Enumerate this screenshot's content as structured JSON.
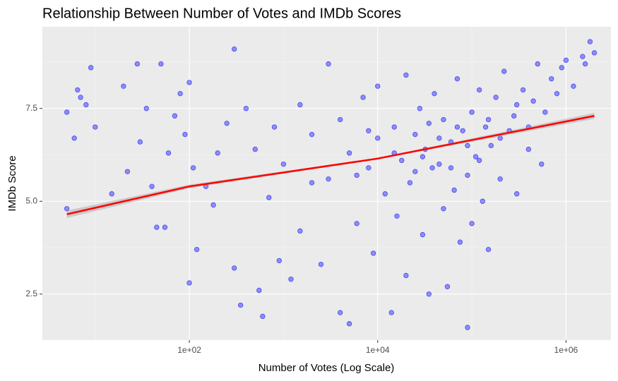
{
  "chart_data": {
    "type": "scatter",
    "title": "Relationship Between Number of Votes and IMDb Scores",
    "x_label": "Number of Votes (Log Scale)",
    "y_label": "IMDb Score",
    "xscale": "log",
    "grid": true,
    "color": "#0000ff",
    "xlim": [
      2.75,
      3000000
    ],
    "ylim": [
      1.26,
      9.7
    ],
    "xticks": [
      {
        "value": 100,
        "label": "1e+02"
      },
      {
        "value": 10000,
        "label": "1e+04"
      },
      {
        "value": 1000000,
        "label": "1e+06"
      }
    ],
    "yticks": [
      2.5,
      5.0,
      7.5
    ],
    "x": [
      5,
      6,
      6.5,
      7,
      8,
      9,
      10,
      5,
      15,
      20,
      22,
      28,
      30,
      35,
      40,
      45,
      50,
      55,
      60,
      70,
      80,
      90,
      100,
      110,
      120,
      100,
      150,
      180,
      200,
      250,
      300,
      300,
      350,
      400,
      500,
      550,
      600,
      700,
      800,
      900,
      1000,
      1200,
      1500,
      1500,
      2000,
      2500,
      3000,
      3000,
      4000,
      4000,
      5000,
      5000,
      6000,
      7000,
      8000,
      9000,
      10000,
      10000,
      12000,
      14000,
      15000,
      16000,
      18000,
      20000,
      20000,
      22000,
      25000,
      28000,
      30000,
      32000,
      35000,
      38000,
      40000,
      45000,
      50000,
      50000,
      55000,
      60000,
      65000,
      70000,
      75000,
      80000,
      90000,
      90000,
      100000,
      100000,
      110000,
      120000,
      130000,
      140000,
      150000,
      160000,
      180000,
      200000,
      220000,
      250000,
      280000,
      300000,
      350000,
      400000,
      450000,
      500000,
      550000,
      600000,
      700000,
      800000,
      900000,
      1000000,
      1200000,
      1500000,
      1800000,
      2000000,
      1600000,
      15000,
      25000,
      35000,
      45000,
      60000,
      70000,
      120000,
      200000,
      300000,
      30000,
      8000,
      6000,
      2000,
      400000,
      150000,
      90000
    ],
    "values": [
      7.4,
      6.7,
      8.0,
      7.8,
      7.6,
      8.6,
      7.0,
      4.8,
      5.2,
      8.1,
      5.8,
      8.7,
      6.6,
      7.5,
      5.4,
      4.3,
      8.7,
      4.3,
      6.3,
      7.3,
      7.9,
      6.8,
      8.2,
      5.9,
      3.7,
      2.8,
      5.4,
      4.9,
      6.3,
      7.1,
      9.1,
      3.2,
      2.2,
      7.5,
      6.4,
      2.6,
      1.9,
      5.1,
      7.0,
      3.4,
      6.0,
      2.9,
      7.6,
      4.2,
      6.8,
      3.3,
      8.7,
      5.6,
      2.0,
      7.2,
      1.7,
      6.3,
      4.4,
      7.8,
      5.9,
      3.6,
      6.7,
      8.1,
      5.2,
      2.0,
      7.0,
      4.6,
      6.1,
      8.4,
      3.0,
      5.5,
      6.8,
      7.5,
      4.1,
      6.4,
      2.5,
      5.9,
      7.9,
      6.0,
      4.8,
      7.2,
      2.7,
      6.6,
      5.3,
      8.3,
      3.9,
      6.9,
      1.6,
      5.7,
      7.4,
      4.4,
      6.2,
      8.0,
      5.0,
      7.0,
      3.7,
      6.5,
      7.8,
      5.6,
      8.5,
      6.9,
      7.3,
      5.2,
      8.0,
      6.4,
      7.7,
      8.7,
      6.0,
      7.4,
      8.3,
      7.9,
      8.6,
      8.8,
      8.1,
      8.9,
      9.3,
      9.0,
      8.7,
      6.3,
      5.8,
      7.1,
      6.7,
      5.9,
      7.0,
      6.1,
      6.7,
      7.6,
      6.2,
      6.9,
      5.7,
      5.5,
      7.0,
      7.2,
      6.5
    ],
    "trend": {
      "color": "#ff0000",
      "x": [
        5,
        100,
        10000,
        2000000
      ],
      "values": [
        4.65,
        5.4,
        6.15,
        7.3
      ],
      "lower": [
        4.55,
        5.35,
        6.13,
        7.22
      ],
      "upper": [
        4.75,
        5.45,
        6.17,
        7.38
      ]
    }
  }
}
